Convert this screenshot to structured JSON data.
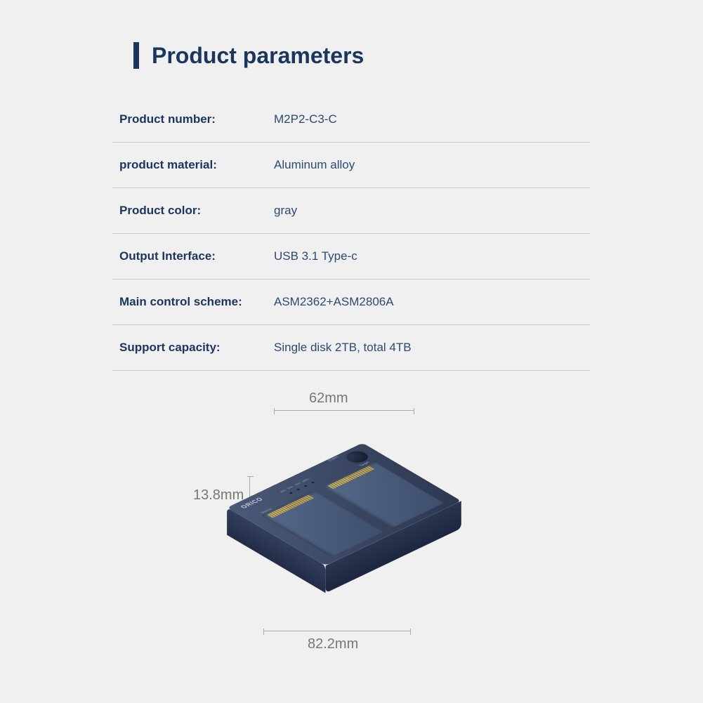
{
  "title": "Product parameters",
  "colors": {
    "primary": "#1b365d",
    "value_text": "#2c4a70",
    "divider": "#c8c8c8",
    "background": "#f0f0f0",
    "dim_text": "#777777",
    "device_top": "#4a5a78",
    "device_dark": "#2c3750"
  },
  "specs": [
    {
      "label": "Product number:",
      "value": "M2P2-C3-C"
    },
    {
      "label": "product material:",
      "value": "Aluminum alloy"
    },
    {
      "label": "Product color:",
      "value": "gray"
    },
    {
      "label": "Output Interface:",
      "value": "USB 3.1 Type-c"
    },
    {
      "label": "Main control scheme:",
      "value": "ASM2362+ASM2806A"
    },
    {
      "label": "Support capacity:",
      "value": "Single disk 2TB, total 4TB"
    }
  ],
  "dimensions": {
    "width": "62mm",
    "height": "13.8mm",
    "depth": "82.2mm"
  },
  "device": {
    "brand": "ORICO",
    "start_label": "START",
    "source_label": "Source",
    "target_label": "Target",
    "led_labels": [
      "25%",
      "50%",
      "75%",
      "100%"
    ]
  }
}
